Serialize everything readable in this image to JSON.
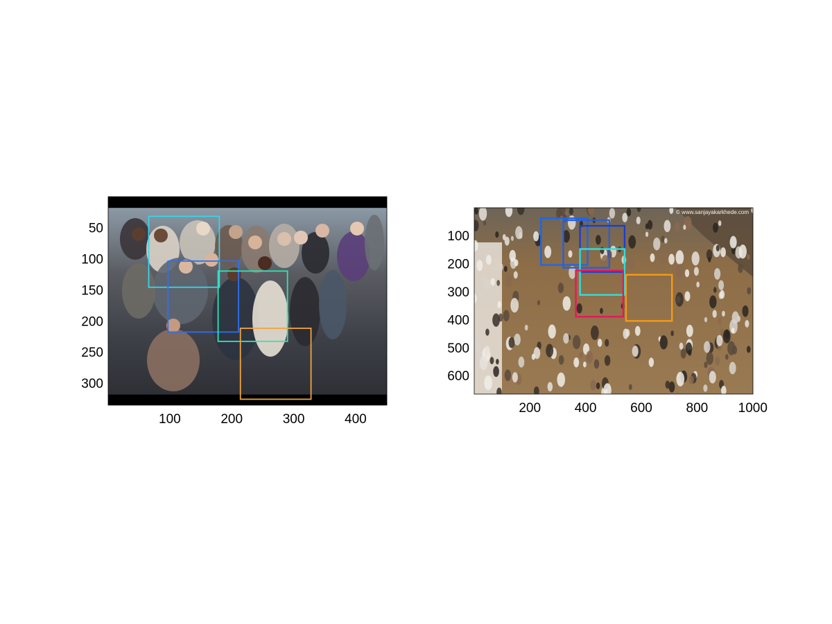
{
  "chart_data": [
    {
      "type": "image",
      "title": "",
      "xlabel": "",
      "ylabel": "",
      "xlim": [
        0.5,
        450.5
      ],
      "ylim": [
        335.5,
        0.5
      ],
      "xticks": [
        100,
        200,
        300,
        400
      ],
      "yticks": [
        50,
        100,
        150,
        200,
        250,
        300
      ],
      "image": {
        "description": "",
        "letterbox_rows": [
          [
            0.5,
            18.5
          ],
          [
            318.5,
            335.5
          ]
        ],
        "letterbox_color": "#000000",
        "content_color": "#55565c"
      },
      "boxes": [
        {
          "x1": 66,
          "y1": 32,
          "x2": 180,
          "y2": 146,
          "color": "#33d6ee"
        },
        {
          "x1": 97,
          "y1": 104,
          "x2": 211,
          "y2": 218,
          "color": "#2f6ff0"
        },
        {
          "x1": 178,
          "y1": 120,
          "x2": 290,
          "y2": 233,
          "color": "#2ee6b4"
        },
        {
          "x1": 214,
          "y1": 212,
          "x2": 328,
          "y2": 326,
          "color": "#f2a440"
        }
      ]
    },
    {
      "type": "image",
      "title": "",
      "xlabel": "",
      "ylabel": "",
      "xlim": [
        0.5,
        1000.5
      ],
      "ylim": [
        666.5,
        0.5
      ],
      "xticks": [
        200,
        400,
        600,
        800,
        1000
      ],
      "yticks": [
        100,
        200,
        300,
        400,
        500,
        600
      ],
      "image": {
        "description": "",
        "watermark": "© www.sanjayakarkhede.com",
        "content_color": "#8a6a45"
      },
      "boxes": [
        {
          "x1": 240,
          "y1": 38,
          "x2": 407,
          "y2": 205,
          "color": "#1e66e8"
        },
        {
          "x1": 320,
          "y1": 45,
          "x2": 485,
          "y2": 215,
          "color": "#2a5fd8"
        },
        {
          "x1": 380,
          "y1": 65,
          "x2": 540,
          "y2": 230,
          "color": "#1a3fd0"
        },
        {
          "x1": 380,
          "y1": 148,
          "x2": 540,
          "y2": 312,
          "color": "#2ee0dc"
        },
        {
          "x1": 365,
          "y1": 225,
          "x2": 535,
          "y2": 390,
          "color": "#e8185a"
        },
        {
          "x1": 545,
          "y1": 240,
          "x2": 710,
          "y2": 405,
          "color": "#f59a18"
        }
      ]
    }
  ]
}
